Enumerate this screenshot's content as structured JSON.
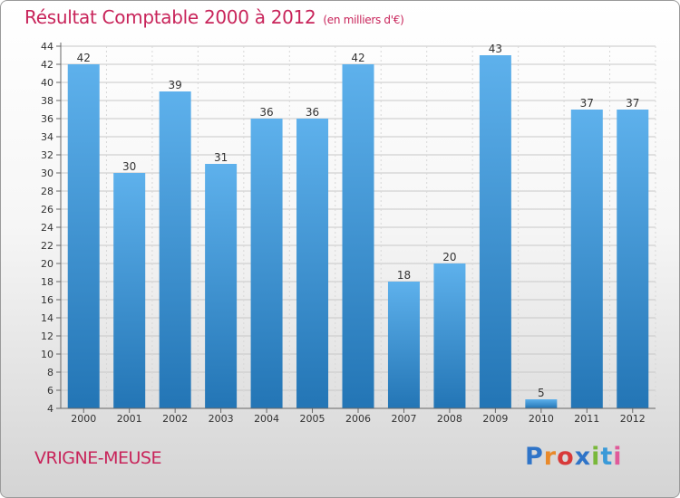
{
  "header": {
    "title": "Résultat Comptable 2000 à 2012",
    "unit": "(en milliers d'€)"
  },
  "footer": {
    "town": "VRIGNE-MEUSE",
    "logo": [
      "P",
      "r",
      "o",
      "x",
      "i",
      "t",
      "i"
    ]
  },
  "colors": {
    "title": "#c8245a",
    "bar_top": "#5eb1ec",
    "bar_bottom": "#2375b5",
    "grid": "#c8c8c8",
    "axis": "#666666"
  },
  "chart_data": {
    "type": "bar",
    "title": "Résultat Comptable 2000 à 2012",
    "subtitle": "(en milliers d'€)",
    "xlabel": "",
    "ylabel": "",
    "categories": [
      "2000",
      "2001",
      "2002",
      "2003",
      "2004",
      "2005",
      "2006",
      "2007",
      "2008",
      "2009",
      "2010",
      "2011",
      "2012"
    ],
    "values": [
      42,
      30,
      39,
      31,
      36,
      36,
      42,
      18,
      20,
      43,
      5,
      37,
      37
    ],
    "ylim": [
      4,
      44
    ],
    "yticks": [
      4,
      6,
      8,
      10,
      12,
      14,
      16,
      18,
      20,
      22,
      24,
      26,
      28,
      30,
      32,
      34,
      36,
      38,
      40,
      42,
      44
    ],
    "grid": true
  }
}
